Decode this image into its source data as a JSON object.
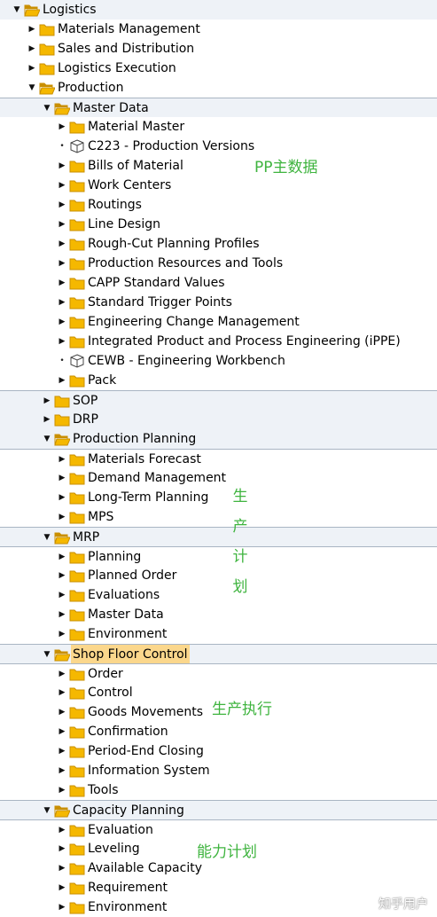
{
  "tree": [
    {
      "label": "Logistics",
      "level": 0,
      "state": "open",
      "icon": "folder-open-icon",
      "band": true
    },
    {
      "label": "Materials Management",
      "level": 1,
      "state": "closed",
      "icon": "folder-icon"
    },
    {
      "label": "Sales and Distribution",
      "level": 1,
      "state": "closed",
      "icon": "folder-icon"
    },
    {
      "label": "Logistics Execution",
      "level": 1,
      "state": "closed",
      "icon": "folder-icon"
    },
    {
      "label": "Production",
      "level": 1,
      "state": "open",
      "icon": "folder-open-icon"
    },
    {
      "label": "Master Data",
      "level": 2,
      "state": "open",
      "icon": "folder-open-icon",
      "band": true,
      "sep": true
    },
    {
      "label": "Material Master",
      "level": 3,
      "state": "closed",
      "icon": "folder-icon"
    },
    {
      "label": "C223 - Production Versions",
      "level": 3,
      "state": "leaf",
      "icon": "transaction-cube-icon"
    },
    {
      "label": "Bills of Material",
      "level": 3,
      "state": "closed",
      "icon": "folder-icon"
    },
    {
      "label": "Work Centers",
      "level": 3,
      "state": "closed",
      "icon": "folder-icon"
    },
    {
      "label": "Routings",
      "level": 3,
      "state": "closed",
      "icon": "folder-icon"
    },
    {
      "label": "Line Design",
      "level": 3,
      "state": "closed",
      "icon": "folder-icon"
    },
    {
      "label": "Rough-Cut Planning Profiles",
      "level": 3,
      "state": "closed",
      "icon": "folder-icon"
    },
    {
      "label": "Production Resources and Tools",
      "level": 3,
      "state": "closed",
      "icon": "folder-icon"
    },
    {
      "label": "CAPP Standard Values",
      "level": 3,
      "state": "closed",
      "icon": "folder-icon"
    },
    {
      "label": "Standard Trigger Points",
      "level": 3,
      "state": "closed",
      "icon": "folder-icon"
    },
    {
      "label": "Engineering Change Management",
      "level": 3,
      "state": "closed",
      "icon": "folder-icon"
    },
    {
      "label": "Integrated Product and Process Engineering (iPPE)",
      "level": 3,
      "state": "closed",
      "icon": "folder-icon"
    },
    {
      "label": "CEWB - Engineering Workbench",
      "level": 3,
      "state": "leaf",
      "icon": "transaction-cube-icon"
    },
    {
      "label": "Pack",
      "level": 3,
      "state": "closed",
      "icon": "folder-icon"
    },
    {
      "label": "SOP",
      "level": 2,
      "state": "closed",
      "icon": "folder-icon",
      "band": true,
      "sep": true
    },
    {
      "label": "DRP",
      "level": 2,
      "state": "closed",
      "icon": "folder-icon",
      "band": true
    },
    {
      "label": "Production Planning",
      "level": 2,
      "state": "open",
      "icon": "folder-open-icon",
      "band": true
    },
    {
      "label": "Materials Forecast",
      "level": 3,
      "state": "closed",
      "icon": "folder-icon",
      "sep": true
    },
    {
      "label": "Demand Management",
      "level": 3,
      "state": "closed",
      "icon": "folder-icon"
    },
    {
      "label": "Long-Term Planning",
      "level": 3,
      "state": "closed",
      "icon": "folder-icon"
    },
    {
      "label": "MPS",
      "level": 3,
      "state": "closed",
      "icon": "folder-icon"
    },
    {
      "label": "MRP",
      "level": 2,
      "state": "open",
      "icon": "folder-open-icon",
      "band": true,
      "sep": true
    },
    {
      "label": "Planning",
      "level": 3,
      "state": "closed",
      "icon": "folder-icon",
      "sep": true
    },
    {
      "label": "Planned Order",
      "level": 3,
      "state": "closed",
      "icon": "folder-icon"
    },
    {
      "label": "Evaluations",
      "level": 3,
      "state": "closed",
      "icon": "folder-icon"
    },
    {
      "label": "Master Data",
      "level": 3,
      "state": "closed",
      "icon": "folder-icon"
    },
    {
      "label": "Environment",
      "level": 3,
      "state": "closed",
      "icon": "folder-icon"
    },
    {
      "label": "Shop Floor Control",
      "level": 2,
      "state": "open",
      "icon": "folder-open-icon",
      "band": true,
      "sep": true,
      "selected": true
    },
    {
      "label": "Order",
      "level": 3,
      "state": "closed",
      "icon": "folder-icon",
      "sep": true
    },
    {
      "label": "Control",
      "level": 3,
      "state": "closed",
      "icon": "folder-icon"
    },
    {
      "label": "Goods Movements",
      "level": 3,
      "state": "closed",
      "icon": "folder-icon"
    },
    {
      "label": "Confirmation",
      "level": 3,
      "state": "closed",
      "icon": "folder-icon"
    },
    {
      "label": "Period-End Closing",
      "level": 3,
      "state": "closed",
      "icon": "folder-icon"
    },
    {
      "label": "Information System",
      "level": 3,
      "state": "closed",
      "icon": "folder-icon"
    },
    {
      "label": "Tools",
      "level": 3,
      "state": "closed",
      "icon": "folder-icon"
    },
    {
      "label": "Capacity Planning",
      "level": 2,
      "state": "open",
      "icon": "folder-open-icon",
      "band": true,
      "sep": true
    },
    {
      "label": "Evaluation",
      "level": 3,
      "state": "closed",
      "icon": "folder-icon",
      "sep": true
    },
    {
      "label": "Leveling",
      "level": 3,
      "state": "closed",
      "icon": "folder-icon"
    },
    {
      "label": "Available Capacity",
      "level": 3,
      "state": "closed",
      "icon": "folder-icon"
    },
    {
      "label": "Requirement",
      "level": 3,
      "state": "closed",
      "icon": "folder-icon"
    },
    {
      "label": "Environment",
      "level": 3,
      "state": "closed",
      "icon": "folder-icon"
    }
  ],
  "annotations": {
    "master_data": "PP主数据",
    "planning": [
      "生",
      "产",
      "计",
      "划"
    ],
    "execution": "生产执行",
    "capacity": "能力计划"
  },
  "watermark": "知乎用户",
  "colors": {
    "folder": "#f5b800",
    "folder_dark": "#c98f00",
    "band": "#eef2f7",
    "separator": "#a9b5c3",
    "selected": "#fbd78c",
    "annotation": "#3fb43f"
  }
}
